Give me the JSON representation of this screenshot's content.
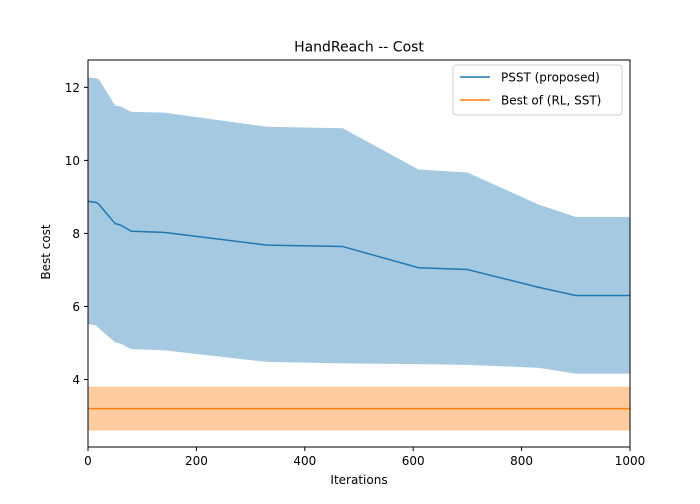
{
  "chart_data": {
    "type": "line",
    "title": "HandReach -- Cost",
    "xlabel": "Iterations",
    "ylabel": "Best cost",
    "xlim": [
      0,
      1000
    ],
    "ylim": [
      2.15,
      12.75
    ],
    "xticks": [
      0,
      200,
      400,
      600,
      800,
      1000
    ],
    "yticks": [
      4,
      6,
      8,
      10,
      12
    ],
    "grid": false,
    "legend_position": "top-right",
    "series": [
      {
        "name": "PSST (proposed)",
        "color": "#1f77b4",
        "band_color": "#1f77b4",
        "band_alpha": 0.4,
        "x": [
          0,
          15,
          20,
          50,
          60,
          80,
          140,
          330,
          470,
          610,
          700,
          830,
          900,
          1000
        ],
        "y": [
          8.88,
          8.85,
          8.8,
          8.27,
          8.23,
          8.06,
          8.03,
          7.68,
          7.64,
          7.06,
          7.01,
          6.53,
          6.3,
          6.3
        ],
        "y_upper": [
          12.27,
          12.25,
          12.22,
          11.5,
          11.48,
          11.33,
          11.31,
          10.92,
          10.88,
          9.75,
          9.67,
          8.8,
          8.45,
          8.45
        ],
        "y_lower": [
          5.52,
          5.48,
          5.4,
          5.02,
          4.98,
          4.83,
          4.8,
          4.48,
          4.44,
          4.42,
          4.4,
          4.32,
          4.16,
          4.16
        ]
      },
      {
        "name": "Best of (RL, SST)",
        "color": "#ff7f0e",
        "band_color": "#ff7f0e",
        "band_alpha": 0.4,
        "x": [
          0,
          1000
        ],
        "y": [
          3.2,
          3.2
        ],
        "y_upper": [
          3.8,
          3.8
        ],
        "y_lower": [
          2.6,
          2.6
        ]
      }
    ]
  }
}
